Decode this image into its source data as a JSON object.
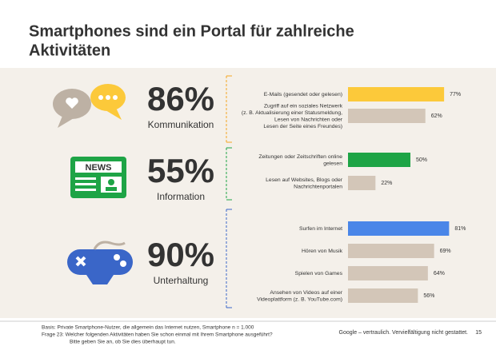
{
  "title": [
    "Smartphones sind ein Portal für zahlreiche",
    "Aktivitäten"
  ],
  "groups": [
    {
      "number": "86%",
      "label": "Kommunikation",
      "color": "#f5a623"
    },
    {
      "number": "55%",
      "label": "Information",
      "color": "#1ea446"
    },
    {
      "number": "90%",
      "label": "Unterhaltung",
      "color": "#3a66c8"
    }
  ],
  "chart_data": {
    "type": "bar",
    "orientation": "horizontal",
    "categories": [
      "E-Mails (gesendet oder gelesen)",
      "Zugriff auf ein soziales Netzwerk\n(z. B. Aktualisierung einer Statusmeldung,\nLesen von Nachrichten oder\nLesen der Seite eines Freundes)",
      "Zeitungen oder Zeitschriften online\ngelesen",
      "Lesen auf Websites, Blogs oder\nNachrichtenportalen",
      "Surfen im Internet",
      "Hören von Musik",
      "Spielen von Games",
      "Ansehen von Videos auf einer\nVideoplattform (z. B. YouTube.com)"
    ],
    "values": [
      77,
      62,
      50,
      22,
      81,
      69,
      64,
      56
    ],
    "value_labels": [
      "77%",
      "62%",
      "50%",
      "22%",
      "81%",
      "69%",
      "64%",
      "56%"
    ],
    "colors": [
      "#fcc93a",
      "#d3c6b8",
      "#1ea446",
      "#d3c6b8",
      "#4a86e8",
      "#d3c6b8",
      "#d3c6b8",
      "#d3c6b8"
    ]
  },
  "footnote": [
    "Basis: Private Smartphone-Nutzer, die allgemein das Internet nutzen, Smartphone n = 1.000",
    "Frage 23:  Welcher folgenden Aktivitäten haben Sie schon einmal mit Ihrem Smartphone ausgeführt?",
    "Bitte geben Sie an, ob Sie dies überhaupt tun."
  ],
  "footer": {
    "text": "Google – vertraulich. Vervielfältigung nicht gestattet.",
    "page": "15"
  }
}
